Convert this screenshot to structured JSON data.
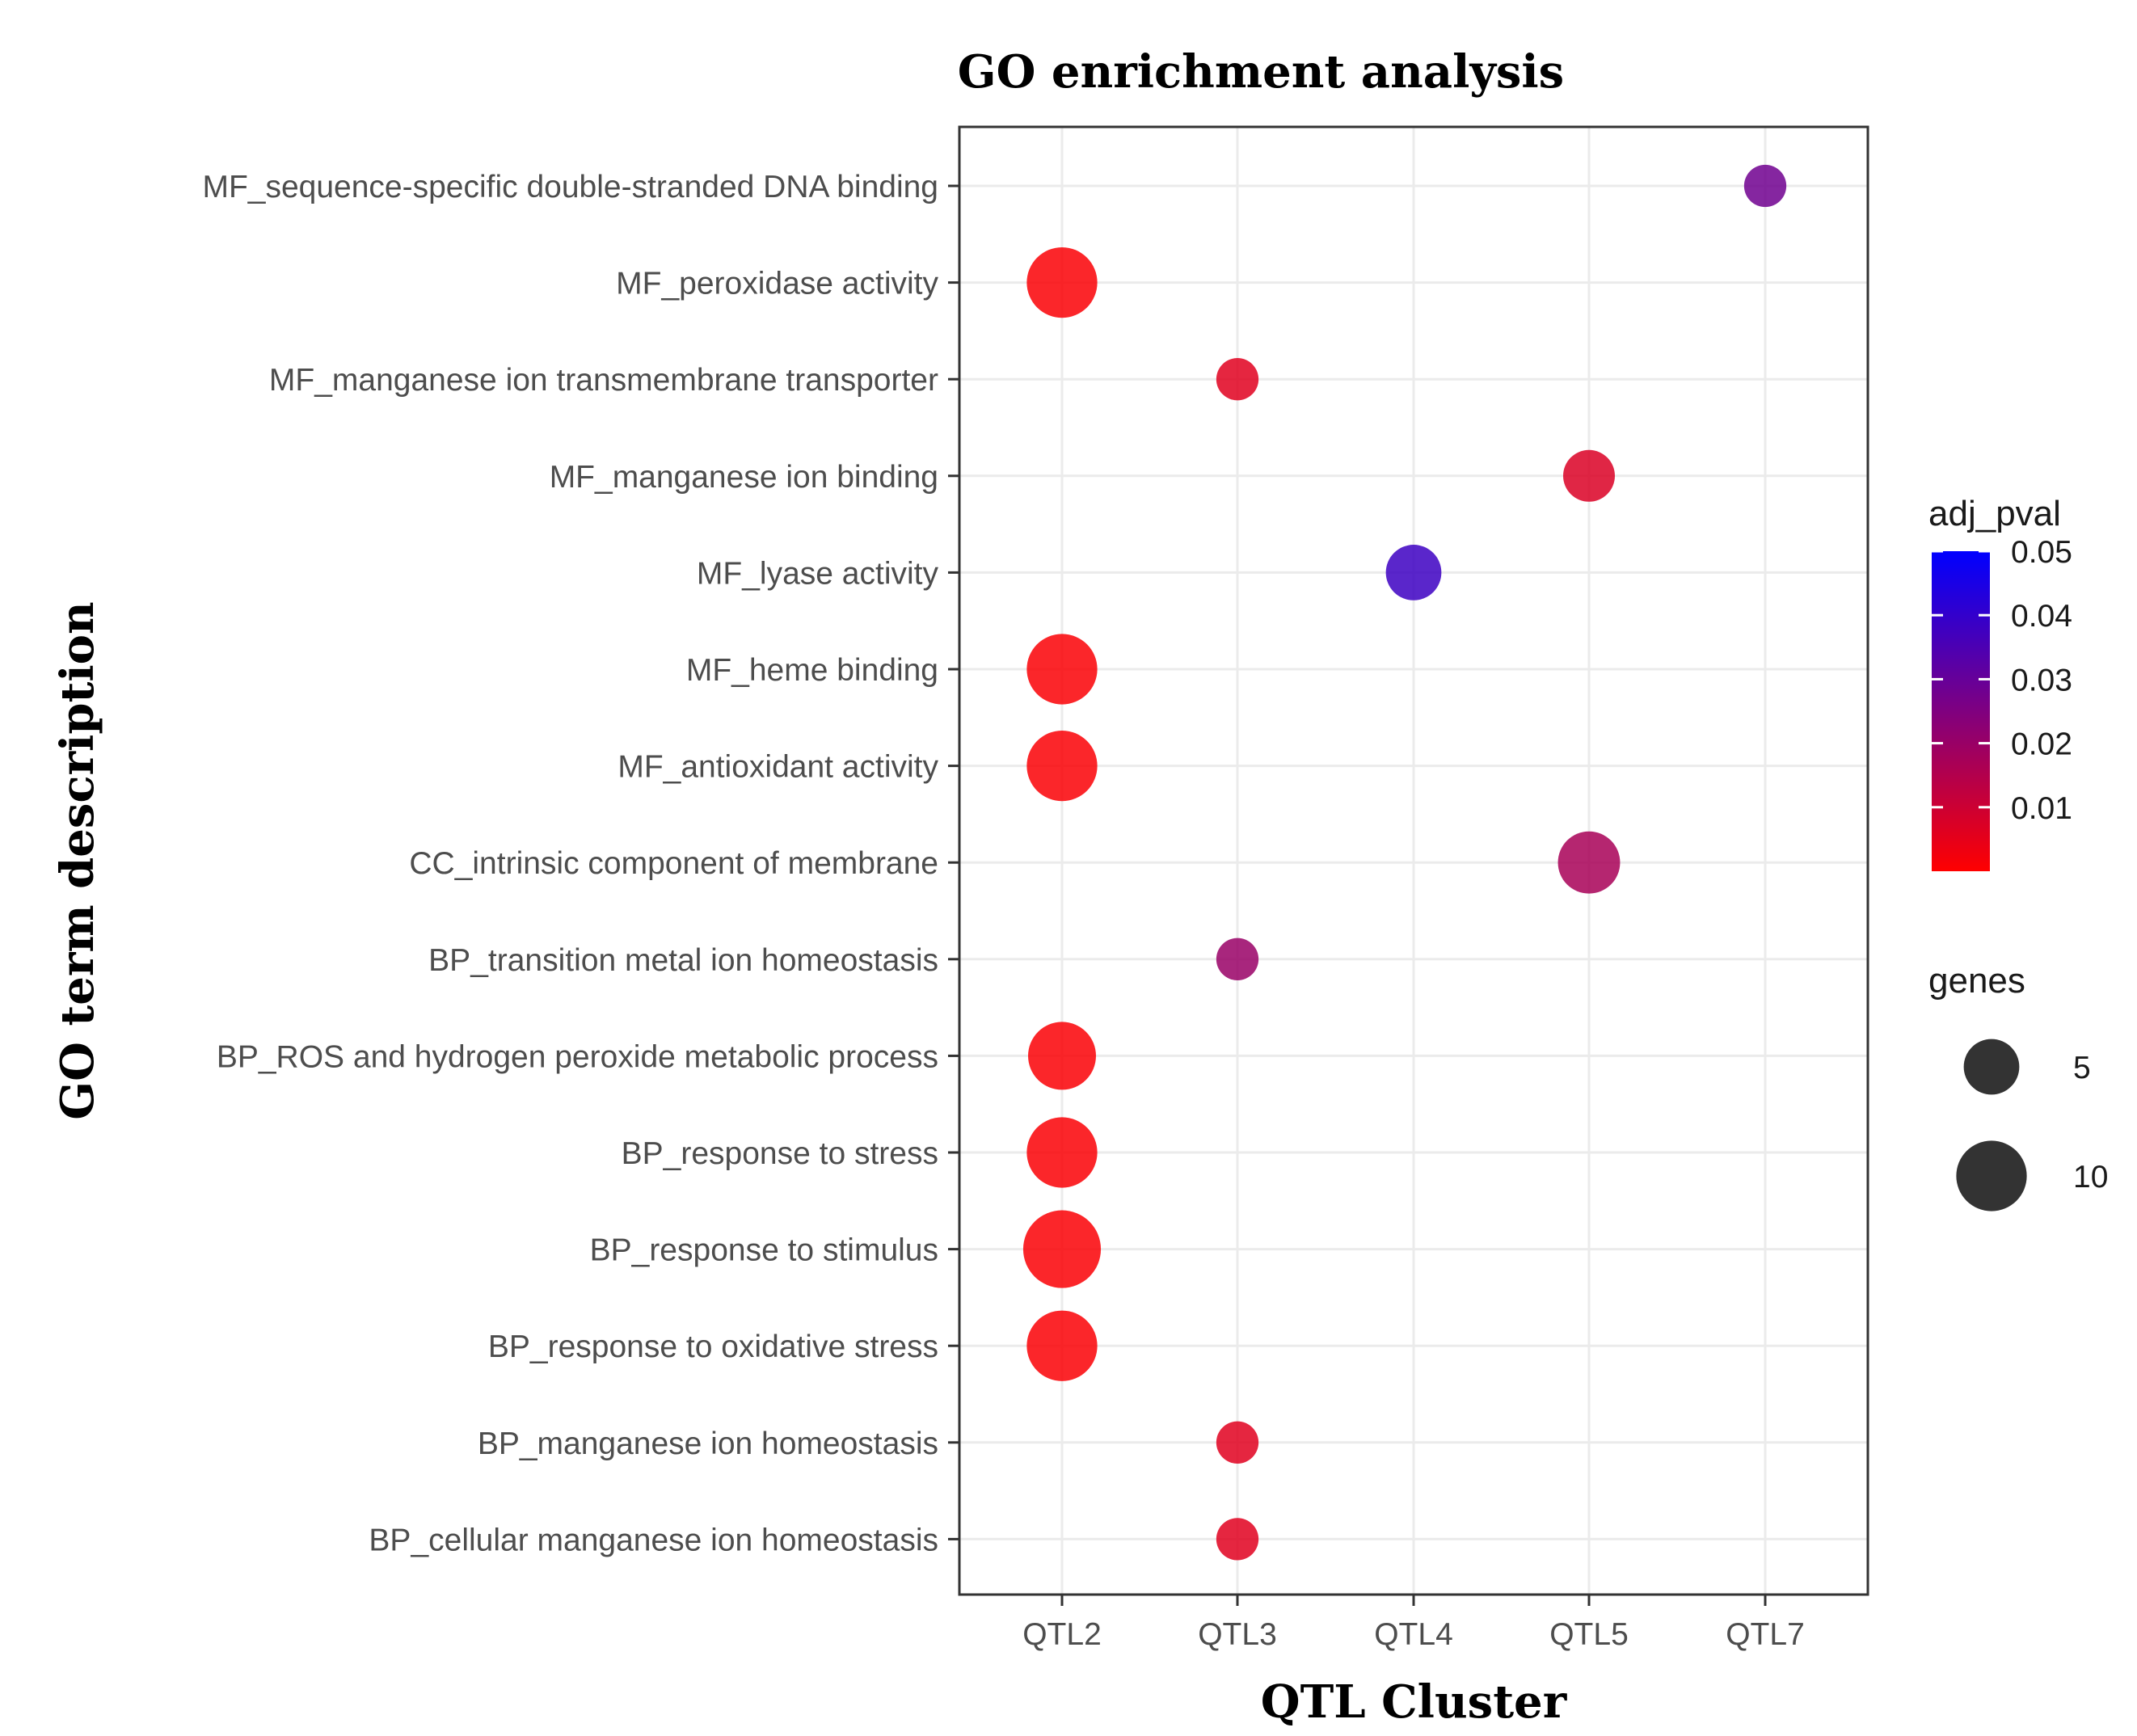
{
  "chart_data": {
    "type": "scatter",
    "title": "GO enrichment analysis",
    "xlabel": "QTL Cluster",
    "ylabel": "GO term description",
    "categories": [
      "QTL2",
      "QTL3",
      "QTL4",
      "QTL5",
      "QTL7"
    ],
    "terms": [
      "MF_sequence-specific double-stranded DNA binding",
      "MF_peroxidase activity",
      "MF_manganese ion transmembrane transporter",
      "MF_manganese ion binding",
      "MF_lyase activity",
      "MF_heme binding",
      "MF_antioxidant activity",
      "CC_intrinsic component of membrane",
      "BP_transition metal ion homeostasis",
      "BP_ROS and hydrogen peroxide metabolic process",
      "BP_response to stress",
      "BP_response to stimulus",
      "BP_response to oxidative stress",
      "BP_manganese ion homeostasis",
      "BP_cellular manganese ion homeostasis"
    ],
    "points": [
      {
        "term": "MF_sequence-specific double-stranded DNA binding",
        "cluster": "QTL7",
        "genes": 2,
        "adj_pval": 0.028
      },
      {
        "term": "MF_peroxidase activity",
        "cluster": "QTL2",
        "genes": 10,
        "adj_pval": 0.001
      },
      {
        "term": "MF_manganese ion transmembrane transporter",
        "cluster": "QTL3",
        "genes": 2,
        "adj_pval": 0.006
      },
      {
        "term": "MF_manganese ion binding",
        "cluster": "QTL5",
        "genes": 4,
        "adj_pval": 0.007
      },
      {
        "term": "MF_lyase activity",
        "cluster": "QTL4",
        "genes": 5,
        "adj_pval": 0.038
      },
      {
        "term": "MF_heme binding",
        "cluster": "QTL2",
        "genes": 10,
        "adj_pval": 0.001
      },
      {
        "term": "MF_antioxidant activity",
        "cluster": "QTL2",
        "genes": 10,
        "adj_pval": 0.001
      },
      {
        "term": "CC_intrinsic component of membrane",
        "cluster": "QTL5",
        "genes": 7,
        "adj_pval": 0.017
      },
      {
        "term": "BP_transition metal ion homeostasis",
        "cluster": "QTL3",
        "genes": 2,
        "adj_pval": 0.02
      },
      {
        "term": "BP_ROS and hydrogen peroxide metabolic process",
        "cluster": "QTL2",
        "genes": 9,
        "adj_pval": 0.001
      },
      {
        "term": "BP_response to stress",
        "cluster": "QTL2",
        "genes": 10,
        "adj_pval": 0.001
      },
      {
        "term": "BP_response to stimulus",
        "cluster": "QTL2",
        "genes": 13,
        "adj_pval": 0.001
      },
      {
        "term": "BP_response to oxidative stress",
        "cluster": "QTL2",
        "genes": 10,
        "adj_pval": 0.001
      },
      {
        "term": "BP_manganese ion homeostasis",
        "cluster": "QTL3",
        "genes": 2,
        "adj_pval": 0.006
      },
      {
        "term": "BP_cellular manganese ion homeostasis",
        "cluster": "QTL3",
        "genes": 2,
        "adj_pval": 0.006
      }
    ],
    "color_scale": {
      "title": "adj_pval",
      "domain": [
        0,
        0.05
      ],
      "low_color": "#ff0000",
      "high_color": "#0000ff",
      "breaks": [
        "0.05",
        "0.04",
        "0.03",
        "0.02",
        "0.01"
      ],
      "break_values": [
        0.05,
        0.04,
        0.03,
        0.02,
        0.01
      ]
    },
    "size_scale": {
      "title": "genes",
      "breaks": [
        "5",
        "10"
      ],
      "break_values": [
        5,
        10
      ]
    },
    "grid": true,
    "legend": "right"
  }
}
